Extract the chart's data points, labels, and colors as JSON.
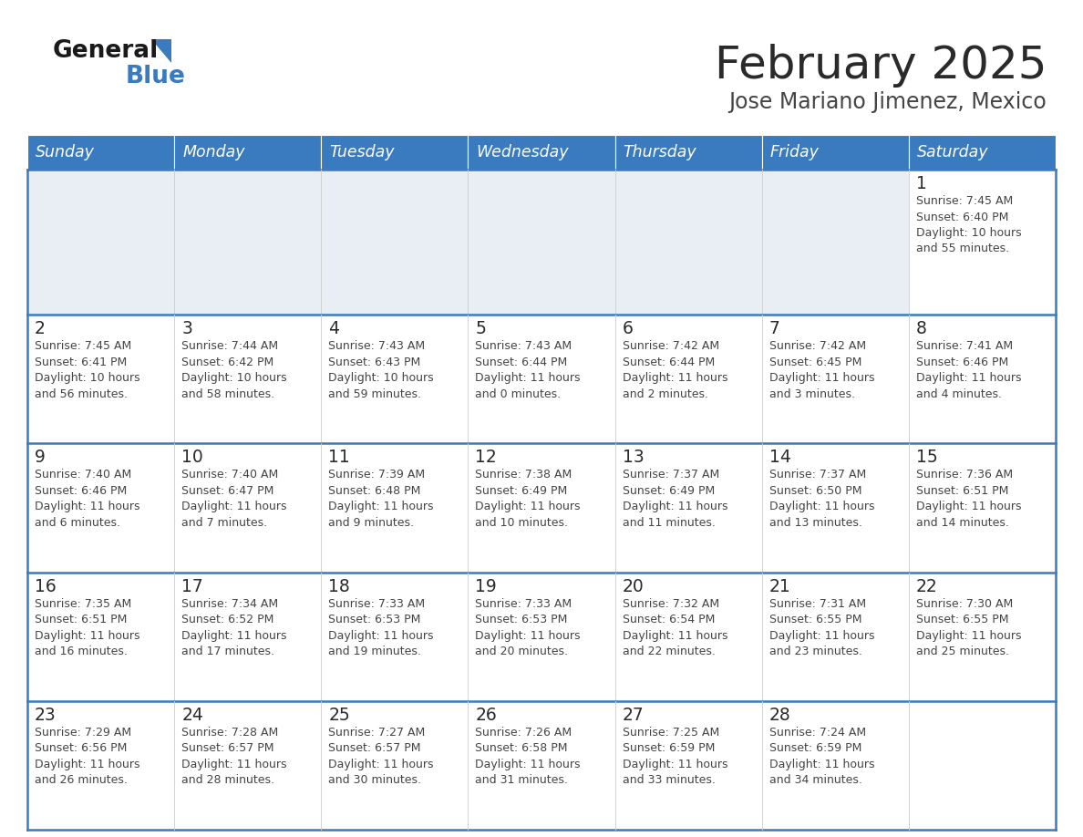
{
  "title": "February 2025",
  "subtitle": "Jose Mariano Jimenez, Mexico",
  "header_bg": "#3a7abf",
  "header_text_color": "#ffffff",
  "row_line_color": "#3a7abf",
  "cell_bg_light": "#e8eef4",
  "cell_bg_white": "#ffffff",
  "day_names": [
    "Sunday",
    "Monday",
    "Tuesday",
    "Wednesday",
    "Thursday",
    "Friday",
    "Saturday"
  ],
  "calendar_data": [
    [
      {
        "day": "",
        "sunrise": "",
        "sunset": "",
        "daylight": ""
      },
      {
        "day": "",
        "sunrise": "",
        "sunset": "",
        "daylight": ""
      },
      {
        "day": "",
        "sunrise": "",
        "sunset": "",
        "daylight": ""
      },
      {
        "day": "",
        "sunrise": "",
        "sunset": "",
        "daylight": ""
      },
      {
        "day": "",
        "sunrise": "",
        "sunset": "",
        "daylight": ""
      },
      {
        "day": "",
        "sunrise": "",
        "sunset": "",
        "daylight": ""
      },
      {
        "day": "1",
        "sunrise": "Sunrise: 7:45 AM",
        "sunset": "Sunset: 6:40 PM",
        "daylight": "Daylight: 10 hours\nand 55 minutes."
      }
    ],
    [
      {
        "day": "2",
        "sunrise": "Sunrise: 7:45 AM",
        "sunset": "Sunset: 6:41 PM",
        "daylight": "Daylight: 10 hours\nand 56 minutes."
      },
      {
        "day": "3",
        "sunrise": "Sunrise: 7:44 AM",
        "sunset": "Sunset: 6:42 PM",
        "daylight": "Daylight: 10 hours\nand 58 minutes."
      },
      {
        "day": "4",
        "sunrise": "Sunrise: 7:43 AM",
        "sunset": "Sunset: 6:43 PM",
        "daylight": "Daylight: 10 hours\nand 59 minutes."
      },
      {
        "day": "5",
        "sunrise": "Sunrise: 7:43 AM",
        "sunset": "Sunset: 6:44 PM",
        "daylight": "Daylight: 11 hours\nand 0 minutes."
      },
      {
        "day": "6",
        "sunrise": "Sunrise: 7:42 AM",
        "sunset": "Sunset: 6:44 PM",
        "daylight": "Daylight: 11 hours\nand 2 minutes."
      },
      {
        "day": "7",
        "sunrise": "Sunrise: 7:42 AM",
        "sunset": "Sunset: 6:45 PM",
        "daylight": "Daylight: 11 hours\nand 3 minutes."
      },
      {
        "day": "8",
        "sunrise": "Sunrise: 7:41 AM",
        "sunset": "Sunset: 6:46 PM",
        "daylight": "Daylight: 11 hours\nand 4 minutes."
      }
    ],
    [
      {
        "day": "9",
        "sunrise": "Sunrise: 7:40 AM",
        "sunset": "Sunset: 6:46 PM",
        "daylight": "Daylight: 11 hours\nand 6 minutes."
      },
      {
        "day": "10",
        "sunrise": "Sunrise: 7:40 AM",
        "sunset": "Sunset: 6:47 PM",
        "daylight": "Daylight: 11 hours\nand 7 minutes."
      },
      {
        "day": "11",
        "sunrise": "Sunrise: 7:39 AM",
        "sunset": "Sunset: 6:48 PM",
        "daylight": "Daylight: 11 hours\nand 9 minutes."
      },
      {
        "day": "12",
        "sunrise": "Sunrise: 7:38 AM",
        "sunset": "Sunset: 6:49 PM",
        "daylight": "Daylight: 11 hours\nand 10 minutes."
      },
      {
        "day": "13",
        "sunrise": "Sunrise: 7:37 AM",
        "sunset": "Sunset: 6:49 PM",
        "daylight": "Daylight: 11 hours\nand 11 minutes."
      },
      {
        "day": "14",
        "sunrise": "Sunrise: 7:37 AM",
        "sunset": "Sunset: 6:50 PM",
        "daylight": "Daylight: 11 hours\nand 13 minutes."
      },
      {
        "day": "15",
        "sunrise": "Sunrise: 7:36 AM",
        "sunset": "Sunset: 6:51 PM",
        "daylight": "Daylight: 11 hours\nand 14 minutes."
      }
    ],
    [
      {
        "day": "16",
        "sunrise": "Sunrise: 7:35 AM",
        "sunset": "Sunset: 6:51 PM",
        "daylight": "Daylight: 11 hours\nand 16 minutes."
      },
      {
        "day": "17",
        "sunrise": "Sunrise: 7:34 AM",
        "sunset": "Sunset: 6:52 PM",
        "daylight": "Daylight: 11 hours\nand 17 minutes."
      },
      {
        "day": "18",
        "sunrise": "Sunrise: 7:33 AM",
        "sunset": "Sunset: 6:53 PM",
        "daylight": "Daylight: 11 hours\nand 19 minutes."
      },
      {
        "day": "19",
        "sunrise": "Sunrise: 7:33 AM",
        "sunset": "Sunset: 6:53 PM",
        "daylight": "Daylight: 11 hours\nand 20 minutes."
      },
      {
        "day": "20",
        "sunrise": "Sunrise: 7:32 AM",
        "sunset": "Sunset: 6:54 PM",
        "daylight": "Daylight: 11 hours\nand 22 minutes."
      },
      {
        "day": "21",
        "sunrise": "Sunrise: 7:31 AM",
        "sunset": "Sunset: 6:55 PM",
        "daylight": "Daylight: 11 hours\nand 23 minutes."
      },
      {
        "day": "22",
        "sunrise": "Sunrise: 7:30 AM",
        "sunset": "Sunset: 6:55 PM",
        "daylight": "Daylight: 11 hours\nand 25 minutes."
      }
    ],
    [
      {
        "day": "23",
        "sunrise": "Sunrise: 7:29 AM",
        "sunset": "Sunset: 6:56 PM",
        "daylight": "Daylight: 11 hours\nand 26 minutes."
      },
      {
        "day": "24",
        "sunrise": "Sunrise: 7:28 AM",
        "sunset": "Sunset: 6:57 PM",
        "daylight": "Daylight: 11 hours\nand 28 minutes."
      },
      {
        "day": "25",
        "sunrise": "Sunrise: 7:27 AM",
        "sunset": "Sunset: 6:57 PM",
        "daylight": "Daylight: 11 hours\nand 30 minutes."
      },
      {
        "day": "26",
        "sunrise": "Sunrise: 7:26 AM",
        "sunset": "Sunset: 6:58 PM",
        "daylight": "Daylight: 11 hours\nand 31 minutes."
      },
      {
        "day": "27",
        "sunrise": "Sunrise: 7:25 AM",
        "sunset": "Sunset: 6:59 PM",
        "daylight": "Daylight: 11 hours\nand 33 minutes."
      },
      {
        "day": "28",
        "sunrise": "Sunrise: 7:24 AM",
        "sunset": "Sunset: 6:59 PM",
        "daylight": "Daylight: 11 hours\nand 34 minutes."
      },
      {
        "day": "",
        "sunrise": "",
        "sunset": "",
        "daylight": ""
      }
    ]
  ]
}
